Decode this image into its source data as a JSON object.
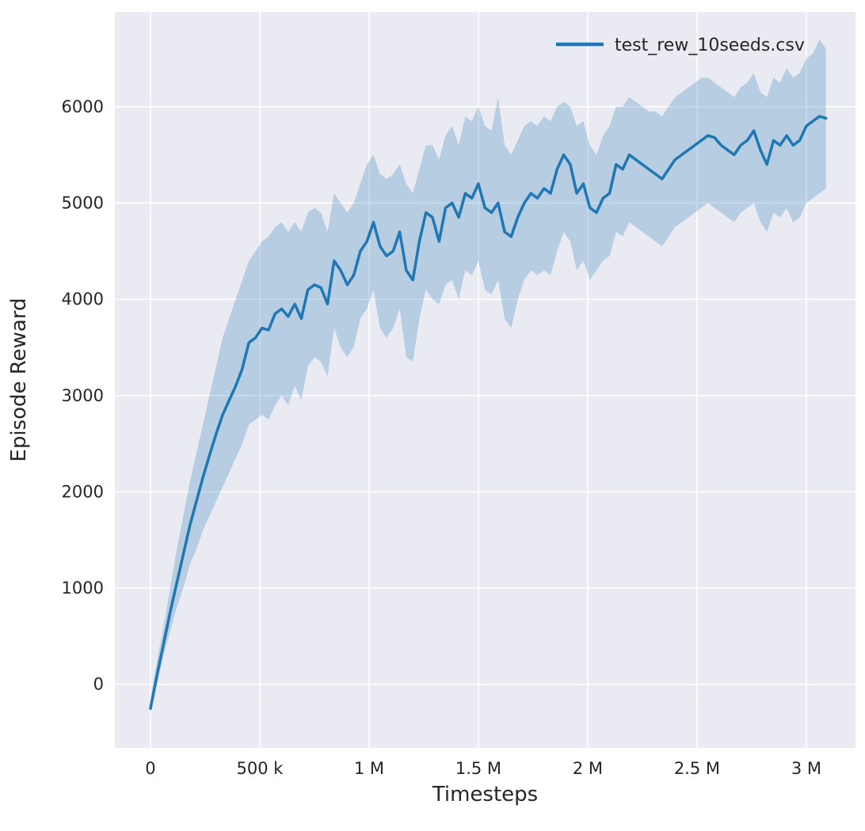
{
  "figure": {
    "background": "#ffffff",
    "panel_background": "#eaeaf2",
    "grid_color": "#ffffff",
    "text_color": "#262626"
  },
  "chart_data": {
    "type": "line",
    "title": "",
    "xlabel": "Timesteps",
    "ylabel": "Episode Reward",
    "grid": true,
    "legend_position": "upper right",
    "legend": [
      {
        "label": "test_rew_10seeds.csv",
        "color": "#1f77b4"
      }
    ],
    "xlim": [
      -163000,
      3225000
    ],
    "ylim": [
      -660,
      6985
    ],
    "x_ticks": [
      {
        "value": 0,
        "label": "0"
      },
      {
        "value": 500000,
        "label": "500 k"
      },
      {
        "value": 1000000,
        "label": "1 M"
      },
      {
        "value": 1500000,
        "label": "1.5 M"
      },
      {
        "value": 2000000,
        "label": "2 M"
      },
      {
        "value": 2500000,
        "label": "2.5 M"
      },
      {
        "value": 3000000,
        "label": "3 M"
      }
    ],
    "y_ticks": [
      {
        "value": 0,
        "label": "0"
      },
      {
        "value": 1000,
        "label": "1000"
      },
      {
        "value": 2000,
        "label": "2000"
      },
      {
        "value": 3000,
        "label": "3000"
      },
      {
        "value": 4000,
        "label": "4000"
      },
      {
        "value": 5000,
        "label": "5000"
      },
      {
        "value": 6000,
        "label": "6000"
      }
    ],
    "series": [
      {
        "name": "test_rew_10seeds.csv",
        "color": "#1f77b4",
        "band_color": "#1f77b4",
        "band_opacity": 0.25,
        "x": [
          0,
          30000,
          60000,
          90000,
          120000,
          150000,
          180000,
          210000,
          240000,
          270000,
          300000,
          330000,
          360000,
          390000,
          420000,
          450000,
          480000,
          510000,
          540000,
          570000,
          600000,
          630000,
          660000,
          690000,
          720000,
          750000,
          780000,
          810000,
          840000,
          870000,
          900000,
          930000,
          960000,
          990000,
          1020000,
          1050000,
          1080000,
          1110000,
          1140000,
          1170000,
          1200000,
          1230000,
          1260000,
          1290000,
          1320000,
          1350000,
          1380000,
          1410000,
          1440000,
          1470000,
          1500000,
          1530000,
          1560000,
          1590000,
          1620000,
          1650000,
          1680000,
          1710000,
          1740000,
          1770000,
          1800000,
          1830000,
          1860000,
          1890000,
          1920000,
          1950000,
          1980000,
          2010000,
          2040000,
          2070000,
          2100000,
          2130000,
          2160000,
          2190000,
          2220000,
          2250000,
          2280000,
          2310000,
          2340000,
          2370000,
          2400000,
          2430000,
          2460000,
          2490000,
          2520000,
          2550000,
          2580000,
          2610000,
          2640000,
          2670000,
          2700000,
          2730000,
          2760000,
          2790000,
          2820000,
          2850000,
          2880000,
          2910000,
          2940000,
          2970000,
          3000000,
          3030000,
          3060000,
          3090000
        ],
        "mean": [
          -250,
          100,
          420,
          750,
          1050,
          1350,
          1650,
          1900,
          2150,
          2380,
          2600,
          2800,
          2950,
          3100,
          3280,
          3550,
          3600,
          3700,
          3680,
          3850,
          3900,
          3820,
          3950,
          3800,
          4100,
          4150,
          4120,
          3950,
          4400,
          4300,
          4150,
          4250,
          4500,
          4600,
          4800,
          4550,
          4450,
          4500,
          4700,
          4300,
          4200,
          4600,
          4900,
          4850,
          4600,
          4950,
          5000,
          4850,
          5100,
          5050,
          5200,
          4950,
          4900,
          5000,
          4700,
          4650,
          4850,
          5000,
          5100,
          5050,
          5150,
          5100,
          5350,
          5500,
          5400,
          5100,
          5200,
          4950,
          4900,
          5050,
          5100,
          5400,
          5350,
          5500,
          5450,
          5400,
          5350,
          5300,
          5250,
          5350,
          5450,
          5500,
          5550,
          5600,
          5650,
          5700,
          5680,
          5600,
          5550,
          5500,
          5600,
          5650,
          5750,
          5550,
          5400,
          5650,
          5600,
          5700,
          5600,
          5650,
          5800,
          5850,
          5900,
          5880
        ],
        "lower": [
          -300,
          0,
          300,
          550,
          800,
          1000,
          1250,
          1400,
          1600,
          1750,
          1900,
          2050,
          2200,
          2350,
          2500,
          2700,
          2750,
          2800,
          2750,
          2900,
          3000,
          2900,
          3100,
          2950,
          3300,
          3400,
          3350,
          3200,
          3700,
          3500,
          3400,
          3500,
          3800,
          3900,
          4100,
          3700,
          3600,
          3700,
          3900,
          3400,
          3350,
          3800,
          4100,
          4000,
          3950,
          4150,
          4200,
          4000,
          4300,
          4250,
          4400,
          4100,
          4050,
          4200,
          3800,
          3700,
          4000,
          4200,
          4300,
          4250,
          4300,
          4250,
          4500,
          4700,
          4600,
          4300,
          4400,
          4200,
          4300,
          4400,
          4450,
          4700,
          4650,
          4800,
          4750,
          4700,
          4650,
          4600,
          4550,
          4650,
          4750,
          4800,
          4850,
          4900,
          4950,
          5000,
          4950,
          4900,
          4850,
          4800,
          4900,
          4950,
          5000,
          4800,
          4700,
          4900,
          4850,
          4950,
          4800,
          4850,
          5000,
          5050,
          5100,
          5150
        ],
        "upper": [
          -150,
          250,
          600,
          1000,
          1400,
          1750,
          2100,
          2400,
          2700,
          3000,
          3300,
          3600,
          3800,
          4000,
          4200,
          4400,
          4500,
          4600,
          4650,
          4750,
          4800,
          4700,
          4800,
          4700,
          4900,
          4950,
          4900,
          4700,
          5100,
          5000,
          4900,
          5000,
          5200,
          5400,
          5500,
          5300,
          5250,
          5300,
          5400,
          5200,
          5100,
          5350,
          5600,
          5600,
          5450,
          5700,
          5800,
          5600,
          5900,
          5850,
          6000,
          5800,
          5750,
          6100,
          5600,
          5500,
          5650,
          5800,
          5850,
          5800,
          5900,
          5850,
          6000,
          6050,
          6000,
          5800,
          5850,
          5600,
          5500,
          5700,
          5800,
          6000,
          6000,
          6100,
          6050,
          6000,
          5950,
          5950,
          5900,
          6000,
          6100,
          6150,
          6200,
          6250,
          6300,
          6300,
          6250,
          6200,
          6150,
          6100,
          6200,
          6250,
          6350,
          6150,
          6100,
          6300,
          6250,
          6400,
          6300,
          6350,
          6500,
          6550,
          6700,
          6600
        ]
      }
    ]
  }
}
